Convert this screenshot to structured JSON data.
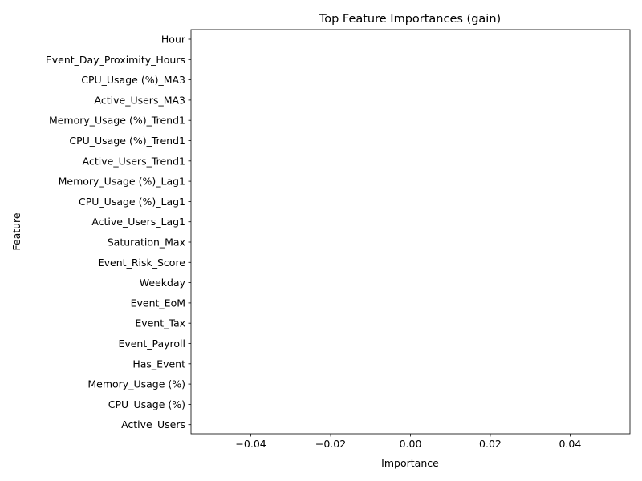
{
  "chart_data": {
    "type": "bar",
    "orientation": "horizontal",
    "title": "Top Feature Importances (gain)",
    "xlabel": "Importance",
    "ylabel": "Feature",
    "xlim": [
      -0.055,
      0.055
    ],
    "xticks": [
      -0.04,
      -0.02,
      0.0,
      0.02,
      0.04
    ],
    "xtick_labels": [
      "−0.04",
      "−0.02",
      "0.00",
      "0.02",
      "0.04"
    ],
    "grid": false,
    "legend": "none",
    "categories": [
      "Hour",
      "Event_Day_Proximity_Hours",
      "CPU_Usage (%)_MA3",
      "Active_Users_MA3",
      "Memory_Usage (%)_Trend1",
      "CPU_Usage (%)_Trend1",
      "Active_Users_Trend1",
      "Memory_Usage (%)_Lag1",
      "CPU_Usage (%)_Lag1",
      "Active_Users_Lag1",
      "Saturation_Max",
      "Event_Risk_Score",
      "Weekday",
      "Event_EoM",
      "Event_Tax",
      "Event_Payroll",
      "Has_Event",
      "Memory_Usage (%)",
      "CPU_Usage (%)",
      "Active_Users"
    ],
    "values": [
      0,
      0,
      0,
      0,
      0,
      0,
      0,
      0,
      0,
      0,
      0,
      0,
      0,
      0,
      0,
      0,
      0,
      0,
      0,
      0
    ],
    "bar_color": "#1f77b4"
  }
}
